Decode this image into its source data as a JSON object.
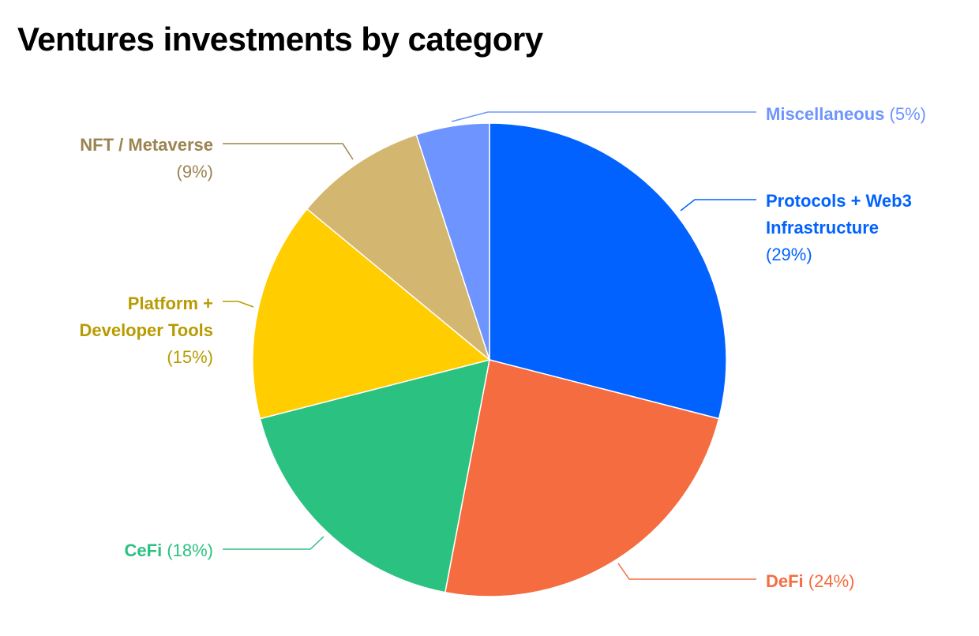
{
  "chart_data": {
    "type": "pie",
    "title": "Ventures investments by category",
    "slices": [
      {
        "label": "Protocols + Web3 Infrastructure",
        "value": 29,
        "value_label": "(29%)",
        "color": "#0162ff"
      },
      {
        "label": "DeFi",
        "value": 24,
        "value_label": "(24%)",
        "color": "#f56c40"
      },
      {
        "label": "CeFi",
        "value": 18,
        "value_label": "(18%)",
        "color": "#2ac181"
      },
      {
        "label": "Platform + Developer Tools",
        "value": 15,
        "value_label": "(15%)",
        "color": "#ffcd00"
      },
      {
        "label": "NFT / Metaverse",
        "value": 9,
        "value_label": "(9%)",
        "color": "#d3b670"
      },
      {
        "label": "Miscellaneous",
        "value": 5,
        "value_label": "(5%)",
        "color": "#6e95ff"
      }
    ],
    "label_colors": [
      "#0162ff",
      "#f56c40",
      "#2ac181",
      "#b89b00",
      "#9b8452",
      "#6e95ff"
    ],
    "start": "top",
    "direction": "clockwise",
    "legend": "leader-line labels"
  }
}
